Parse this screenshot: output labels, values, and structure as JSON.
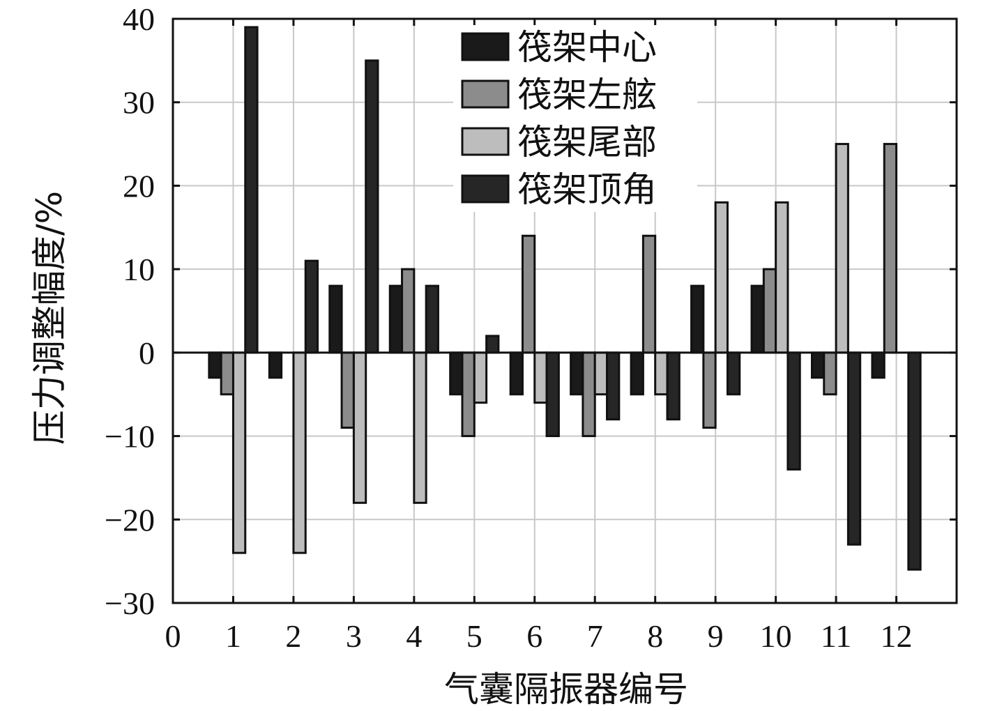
{
  "chart_data": {
    "type": "bar",
    "xlabel": "气囊隔振器编号",
    "ylabel": "压力调整幅度/%",
    "ylim": [
      -30,
      40
    ],
    "xlim": [
      0,
      13
    ],
    "y_ticks": [
      "−30",
      "−20",
      "−10",
      "0",
      "10",
      "20",
      "30",
      "40"
    ],
    "y_tick_values": [
      -30,
      -20,
      -10,
      0,
      10,
      20,
      30,
      40
    ],
    "x_ticks": [
      "0",
      "1",
      "2",
      "3",
      "4",
      "5",
      "6",
      "7",
      "8",
      "9",
      "10",
      "11",
      "12"
    ],
    "categories": [
      "1",
      "2",
      "3",
      "4",
      "5",
      "6",
      "7",
      "8",
      "9",
      "10",
      "11",
      "12"
    ],
    "grid": true,
    "legend_position": "top-center",
    "series": [
      {
        "name": "筏架中心",
        "color": "#1a1a1a",
        "values": [
          -3,
          -3,
          8,
          8,
          -5,
          -5,
          -5,
          -5,
          8,
          8,
          -3,
          -3
        ]
      },
      {
        "name": "筏架左舷",
        "color": "#8c8c8c",
        "values": [
          -5,
          0,
          -9,
          10,
          -10,
          14,
          -10,
          14,
          -9,
          10,
          -5,
          25
        ]
      },
      {
        "name": "筏架尾部",
        "color": "#bdbdbd",
        "values": [
          -24,
          -24,
          -18,
          -18,
          -6,
          -6,
          -5,
          -5,
          18,
          18,
          25,
          0
        ]
      },
      {
        "name": "筏架顶角",
        "color": "#262626",
        "values": [
          39,
          11,
          35,
          8,
          2,
          -10,
          -8,
          -8,
          -5,
          -14,
          -23,
          -26
        ]
      }
    ]
  }
}
